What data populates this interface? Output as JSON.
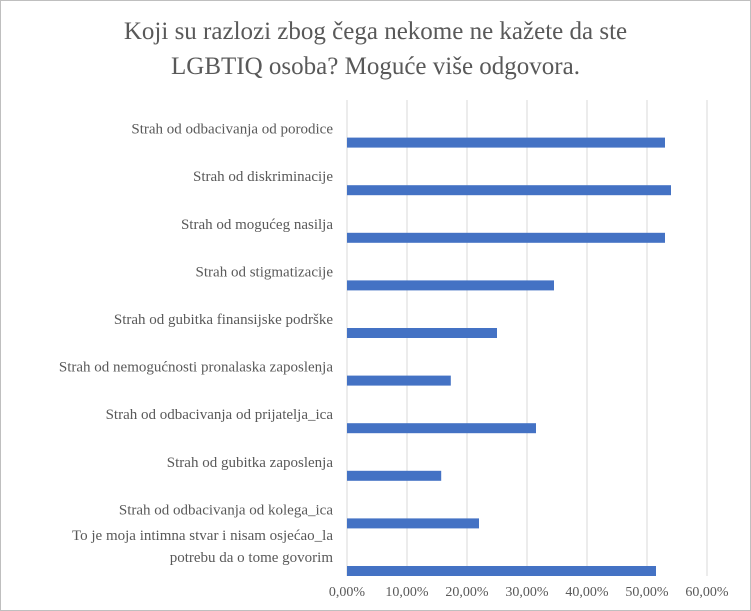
{
  "chart_data": {
    "type": "bar",
    "orientation": "horizontal",
    "title_lines": [
      "Koji su razlozi zbog čega nekome ne kažete da ste",
      "LGBTIQ osoba? Moguće više odgovora."
    ],
    "categories": [
      [
        "Strah od odbacivanja od porodice"
      ],
      [
        "Strah od diskriminacije"
      ],
      [
        "Strah od mogućeg nasilja"
      ],
      [
        "Strah od stigmatizacije"
      ],
      [
        "Strah od gubitka finansijske podrške"
      ],
      [
        "Strah od nemogućnosti pronalaska zaposlenja"
      ],
      [
        "Strah od odbacivanja od prijatelja_ica"
      ],
      [
        "Strah od gubitka zaposlenja"
      ],
      [
        "Strah od odbacivanja od kolega_ica"
      ],
      [
        "To je moja intimna stvar i nisam osjećao_la",
        "potrebu da o tome govorim"
      ]
    ],
    "values": [
      0.53,
      0.54,
      0.53,
      0.345,
      0.25,
      0.173,
      0.315,
      0.157,
      0.22,
      0.515
    ],
    "xlim": [
      0,
      0.6
    ],
    "x_ticks": [
      "0,00%",
      "10,00%",
      "20,00%",
      "30,00%",
      "40,00%",
      "50,00%",
      "60,00%"
    ],
    "grid": "vertical",
    "legend": "none",
    "colors": {
      "bar": "#4472c4",
      "grid": "#d9d9d9",
      "text": "#595959"
    }
  }
}
